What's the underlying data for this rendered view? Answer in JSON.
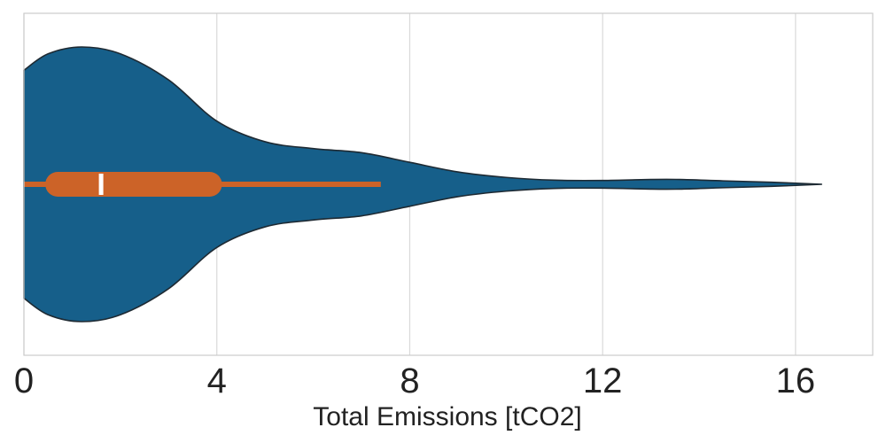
{
  "chart_data": {
    "type": "violin",
    "orientation": "horizontal",
    "title": "",
    "xlabel": "Total Emissions [tCO2]",
    "ylabel": "",
    "xlim": [
      0,
      17.6
    ],
    "xticks": [
      0,
      4,
      8,
      12,
      16
    ],
    "xtick_labels": [
      "0",
      "4",
      "8",
      "12",
      "16"
    ],
    "grid": "vertical",
    "series": [
      {
        "min": 0.0,
        "max": 16.55,
        "q1": 0.7,
        "median": 1.6,
        "q3": 3.85,
        "whisker_low": 0.0,
        "whisker_high": 7.4,
        "density": [
          [
            0.0,
            0.83
          ],
          [
            0.5,
            0.95
          ],
          [
            1.2,
            1.0
          ],
          [
            2.0,
            0.95
          ],
          [
            3.0,
            0.76
          ],
          [
            4.0,
            0.46
          ],
          [
            5.0,
            0.31
          ],
          [
            6.0,
            0.26
          ],
          [
            7.0,
            0.23
          ],
          [
            8.0,
            0.16
          ],
          [
            9.0,
            0.09
          ],
          [
            10.0,
            0.05
          ],
          [
            11.0,
            0.03
          ],
          [
            12.0,
            0.028
          ],
          [
            13.0,
            0.035
          ],
          [
            13.6,
            0.035
          ],
          [
            14.5,
            0.025
          ],
          [
            15.5,
            0.015
          ],
          [
            16.55,
            0.0
          ]
        ]
      }
    ],
    "colors": {
      "violin_fill": "#165f8a",
      "violin_edge": "#1e2a33",
      "box": "#cc6328",
      "median": "#ffffff",
      "grid": "#d9d9d9",
      "frame": "#cccccc"
    }
  }
}
